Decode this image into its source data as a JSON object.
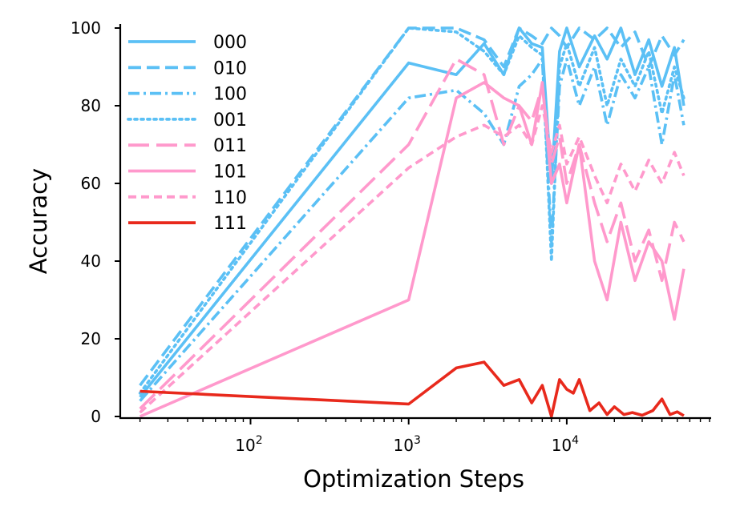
{
  "chart_data": {
    "type": "line",
    "title": "",
    "xlabel": "Optimization Steps",
    "ylabel": "Accuracy",
    "xscale": "log",
    "xlim": [
      15,
      80000
    ],
    "ylim": [
      0,
      100
    ],
    "yticks": [
      0,
      20,
      40,
      60,
      80,
      100
    ],
    "ytick_labels": [
      "0",
      "20",
      "40",
      "60",
      "80",
      "100"
    ],
    "xtick_labels": [
      {
        "base": "10",
        "exp": "2"
      },
      {
        "base": "10",
        "exp": "3"
      },
      {
        "base": "10",
        "exp": "4"
      }
    ],
    "xticks": [
      100,
      1000,
      10000
    ],
    "grid": false,
    "legend": "top-left",
    "series": [
      {
        "name": "000",
        "color": "#5bc0f5",
        "dash": "solid",
        "x": [
          20,
          1000,
          2000,
          3000,
          4000,
          5000,
          6000,
          7000,
          8000,
          9000,
          10000,
          12000,
          15000,
          18000,
          22000,
          27000,
          33000,
          40000,
          48000,
          55000
        ],
        "y": [
          5,
          91,
          88,
          96,
          88,
          100,
          96,
          95,
          60,
          94,
          100,
          90,
          98,
          92,
          100,
          88,
          97,
          85,
          95,
          80
        ]
      },
      {
        "name": "010",
        "color": "#5bc0f5",
        "dash": "dashed",
        "x": [
          20,
          1000,
          2000,
          3000,
          4000,
          5000,
          6000,
          7000,
          8000,
          9000,
          10000,
          12000,
          15000,
          18000,
          22000,
          27000,
          33000,
          40000,
          48000,
          55000
        ],
        "y": [
          8,
          100,
          100,
          97,
          90,
          100,
          98,
          96,
          100,
          98,
          95,
          100,
          97,
          100,
          95,
          99,
          90,
          98,
          93,
          97
        ]
      },
      {
        "name": "100",
        "color": "#5bc0f5",
        "dash": "dashdot",
        "x": [
          20,
          1000,
          2000,
          3000,
          4000,
          5000,
          6000,
          7000,
          8000,
          9000,
          10000,
          12000,
          15000,
          18000,
          22000,
          27000,
          33000,
          40000,
          48000,
          55000
        ],
        "y": [
          4,
          82,
          84,
          78,
          70,
          85,
          88,
          92,
          45,
          85,
          92,
          80,
          90,
          75,
          88,
          82,
          90,
          70,
          88,
          75
        ]
      },
      {
        "name": "001",
        "color": "#5bc0f5",
        "dash": "dotted",
        "x": [
          20,
          1000,
          2000,
          3000,
          4000,
          5000,
          6000,
          7000,
          8000,
          9000,
          10000,
          12000,
          15000,
          18000,
          22000,
          27000,
          33000,
          40000,
          48000,
          55000
        ],
        "y": [
          6,
          100,
          99,
          94,
          88,
          98,
          95,
          93,
          40,
          90,
          96,
          85,
          95,
          80,
          92,
          85,
          94,
          78,
          90,
          82
        ]
      },
      {
        "name": "011",
        "color": "#ff99cc",
        "dash": "longdash",
        "x": [
          20,
          1000,
          2000,
          3000,
          4000,
          5000,
          6000,
          7000,
          8000,
          9000,
          10000,
          12000,
          15000,
          18000,
          22000,
          27000,
          33000,
          40000,
          48000,
          55000
        ],
        "y": [
          2,
          70,
          92,
          88,
          70,
          80,
          76,
          85,
          65,
          72,
          60,
          70,
          55,
          45,
          55,
          40,
          48,
          35,
          50,
          45
        ]
      },
      {
        "name": "101",
        "color": "#ff99cc",
        "dash": "solid",
        "x": [
          20,
          1000,
          2000,
          3000,
          4000,
          5000,
          6000,
          7000,
          8000,
          9000,
          10000,
          12000,
          15000,
          18000,
          22000,
          27000,
          33000,
          40000,
          48000,
          55000
        ],
        "y": [
          0,
          30,
          82,
          86,
          82,
          80,
          70,
          86,
          60,
          65,
          55,
          70,
          40,
          30,
          50,
          35,
          45,
          40,
          25,
          38
        ]
      },
      {
        "name": "110",
        "color": "#ff99cc",
        "dash": "shortdash",
        "x": [
          20,
          1000,
          2000,
          3000,
          4000,
          5000,
          6000,
          7000,
          8000,
          9000,
          10000,
          12000,
          15000,
          18000,
          22000,
          27000,
          33000,
          40000,
          48000,
          55000
        ],
        "y": [
          1,
          64,
          72,
          75,
          72,
          75,
          70,
          80,
          68,
          75,
          65,
          72,
          62,
          55,
          65,
          58,
          66,
          60,
          68,
          62
        ]
      },
      {
        "name": "111",
        "color": "#e8291c",
        "dash": "solid",
        "x": [
          20,
          1000,
          2000,
          3000,
          4000,
          5000,
          6000,
          7000,
          8000,
          9000,
          10000,
          11000,
          12000,
          14000,
          16000,
          18000,
          20000,
          23000,
          26000,
          30000,
          35000,
          40000,
          45000,
          50000,
          55000
        ],
        "y": [
          6.5,
          3.2,
          12.5,
          14,
          8,
          9.5,
          3.5,
          8,
          0,
          9.5,
          7,
          6,
          9.5,
          1.5,
          3.5,
          0.5,
          2.5,
          0.5,
          1,
          0.3,
          1.5,
          4.5,
          0.5,
          1.2,
          0.2
        ]
      }
    ]
  }
}
